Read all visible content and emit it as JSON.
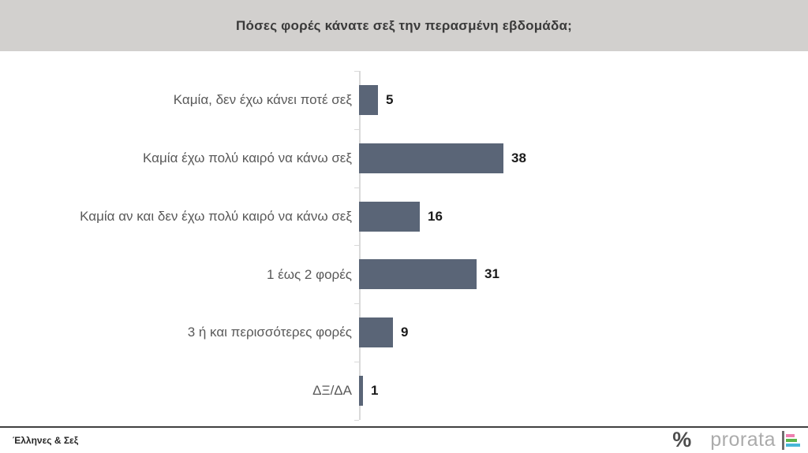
{
  "chart_data": {
    "type": "bar",
    "orientation": "horizontal",
    "title": "Πόσες φορές κάνατε σεξ την περασμένη εβδομάδα;",
    "categories": [
      "Καμία, δεν έχω κάνει ποτέ σεξ",
      "Καμία έχω πολύ καιρό να κάνω σεξ",
      "Καμία αν και δεν έχω πολύ καιρό να κάνω σεξ",
      "1 έως 2 φορές",
      "3 ή και περισσότερες φορές",
      "ΔΞ/ΔΑ"
    ],
    "values": [
      5,
      38,
      16,
      31,
      9,
      1
    ],
    "xlim": [
      0,
      40
    ],
    "value_labels_shown": true,
    "legend": "none",
    "grid": "off",
    "colors": {
      "bar": "#5a6577",
      "axis": "#d9d9d9",
      "title_band_background": "#d2d0ce",
      "category_label": "#595959",
      "value_label": "#1a1a1a"
    }
  },
  "footer": {
    "source_label": "Έλληνες & Σεξ",
    "brand": {
      "percent_mark": "%",
      "name": "prorata",
      "logo_line_color": "#6e6e6e",
      "logo_bar_colors": [
        "#ee7fb0",
        "#5cb54a",
        "#48b6d8"
      ]
    }
  }
}
